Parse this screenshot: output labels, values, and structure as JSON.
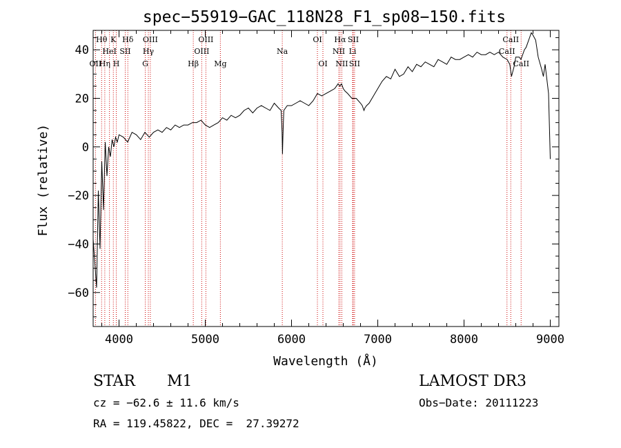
{
  "colors": {
    "axis": "#000000",
    "spectrum": "#000000",
    "line_marker": "#cc0000",
    "background": "#ffffff"
  },
  "chart_data": {
    "type": "line",
    "title": "spec−55919−GAC_118N28_F1_sp08−150.fits",
    "xlabel": "Wavelength (Å)",
    "ylabel": "Flux (relative)",
    "xlim": [
      3700,
      9100
    ],
    "ylim": [
      -74,
      48
    ],
    "xticks": [
      4000,
      5000,
      6000,
      7000,
      8000,
      9000
    ],
    "yticks": [
      -60,
      -40,
      -20,
      0,
      20,
      40
    ],
    "grid": false,
    "spectrum_x": [
      3700,
      3720,
      3740,
      3760,
      3780,
      3800,
      3820,
      3840,
      3860,
      3880,
      3900,
      3920,
      3940,
      3960,
      3980,
      4000,
      4050,
      4100,
      4150,
      4200,
      4250,
      4300,
      4350,
      4400,
      4450,
      4500,
      4550,
      4600,
      4650,
      4700,
      4750,
      4800,
      4850,
      4900,
      4950,
      5000,
      5050,
      5100,
      5150,
      5200,
      5250,
      5300,
      5350,
      5400,
      5450,
      5500,
      5550,
      5600,
      5650,
      5700,
      5750,
      5800,
      5850,
      5880,
      5890,
      5895,
      5900,
      5910,
      5950,
      6000,
      6050,
      6100,
      6150,
      6200,
      6250,
      6300,
      6350,
      6400,
      6450,
      6500,
      6520,
      6540,
      6560,
      6580,
      6600,
      6620,
      6650,
      6700,
      6750,
      6800,
      6820,
      6840,
      6850,
      6870,
      6900,
      6950,
      7000,
      7050,
      7100,
      7150,
      7200,
      7250,
      7300,
      7350,
      7400,
      7450,
      7500,
      7550,
      7600,
      7650,
      7700,
      7750,
      7800,
      7850,
      7900,
      7950,
      8000,
      8050,
      8100,
      8150,
      8200,
      8250,
      8300,
      8350,
      8400,
      8450,
      8500,
      8530,
      8550,
      8580,
      8600,
      8640,
      8660,
      8700,
      8720,
      8740,
      8760,
      8780,
      8800,
      8830,
      8860,
      8900,
      8920,
      8940,
      8960,
      8980,
      9000
    ],
    "spectrum_y": [
      -38,
      -48,
      -58,
      -18,
      -42,
      -6,
      -26,
      2,
      -12,
      0,
      -4,
      3,
      0,
      4,
      2,
      5,
      4,
      2,
      6,
      5,
      3,
      6,
      4,
      6,
      7,
      6,
      8,
      7,
      9,
      8,
      9,
      9,
      10,
      10,
      11,
      9,
      8,
      9,
      10,
      12,
      11,
      13,
      12,
      13,
      15,
      16,
      14,
      16,
      17,
      16,
      15,
      18,
      16,
      15,
      6,
      -3,
      4,
      15,
      17,
      17,
      18,
      19,
      18,
      17,
      19,
      22,
      21,
      22,
      23,
      24,
      25,
      26,
      25,
      26,
      24,
      23,
      22,
      20,
      20,
      18,
      17,
      15,
      16,
      17,
      18,
      21,
      24,
      27,
      29,
      28,
      32,
      29,
      30,
      33,
      31,
      34,
      33,
      35,
      34,
      33,
      36,
      35,
      34,
      37,
      36,
      36,
      37,
      38,
      37,
      39,
      38,
      38,
      39,
      38,
      39,
      37,
      36,
      34,
      29,
      33,
      37,
      37,
      36,
      40,
      41,
      43,
      45,
      47,
      46,
      44,
      37,
      32,
      29,
      34,
      28,
      22,
      -5
    ],
    "lines": [
      {
        "name": "Hθ",
        "wl": 3798,
        "row": 0
      },
      {
        "name": "Hη",
        "wl": 3835,
        "row": 2
      },
      {
        "name": "OII",
        "wl": 3727,
        "row": 2
      },
      {
        "name": "HeI",
        "wl": 3889,
        "row": 1
      },
      {
        "name": "H",
        "wl": 3968,
        "row": 2
      },
      {
        "name": "K",
        "wl": 3934,
        "row": 0
      },
      {
        "name": "Hδ",
        "wl": 4102,
        "row": 0
      },
      {
        "name": "SII",
        "wl": 4072,
        "row": 1
      },
      {
        "name": "G",
        "wl": 4304,
        "row": 2
      },
      {
        "name": "Hγ",
        "wl": 4340,
        "row": 1
      },
      {
        "name": "OIII",
        "wl": 4363,
        "row": 0
      },
      {
        "name": "Hβ",
        "wl": 4861,
        "row": 2
      },
      {
        "name": "OIII",
        "wl": 4959,
        "row": 1
      },
      {
        "name": "OIII",
        "wl": 5007,
        "row": 0
      },
      {
        "name": "Mg",
        "wl": 5175,
        "row": 2
      },
      {
        "name": "Na",
        "wl": 5893,
        "row": 1
      },
      {
        "name": "OI",
        "wl": 6300,
        "row": 0
      },
      {
        "name": "OI",
        "wl": 6364,
        "row": 2
      },
      {
        "name": "NII",
        "wl": 6548,
        "row": 1
      },
      {
        "name": "Hα",
        "wl": 6563,
        "row": 0
      },
      {
        "name": "NII",
        "wl": 6583,
        "row": 2
      },
      {
        "name": "Li",
        "wl": 6708,
        "row": 1
      },
      {
        "name": "SII",
        "wl": 6716,
        "row": 0
      },
      {
        "name": "SII",
        "wl": 6731,
        "row": 2
      },
      {
        "name": "CaII",
        "wl": 8498,
        "row": 1
      },
      {
        "name": "CaII",
        "wl": 8542,
        "row": 0
      },
      {
        "name": "CaII",
        "wl": 8662,
        "row": 2
      }
    ]
  },
  "info": {
    "class": "STAR",
    "subclass": "M1",
    "cz": "cz = −62.6 ± 11.6 km/s",
    "coords": "RA = 119.45822, DEC =  27.39272",
    "survey": "LAMOST DR3",
    "obs_date": "Obs−Date: 20111223"
  }
}
